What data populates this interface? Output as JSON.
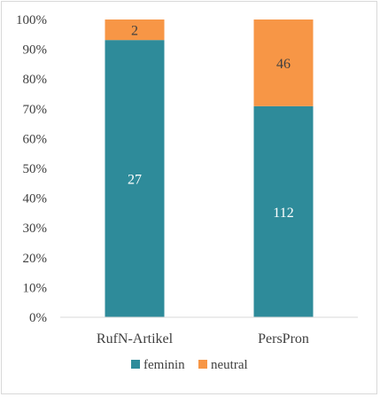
{
  "chart_data": {
    "type": "bar",
    "stacked": "percent",
    "categories": [
      "RufN-Artikel",
      "PersPron"
    ],
    "series": [
      {
        "name": "feminin",
        "values": [
          27,
          112
        ],
        "color": "#2e8b9a",
        "label_color": "#ffffff"
      },
      {
        "name": "neutral",
        "values": [
          2,
          46
        ],
        "color": "#f79646",
        "label_color": "#404040"
      }
    ],
    "ylim": [
      0,
      100
    ],
    "yticks": [
      "0%",
      "10%",
      "20%",
      "30%",
      "40%",
      "50%",
      "60%",
      "70%",
      "80%",
      "90%",
      "100%"
    ],
    "grid": false,
    "legend": "bottom"
  }
}
